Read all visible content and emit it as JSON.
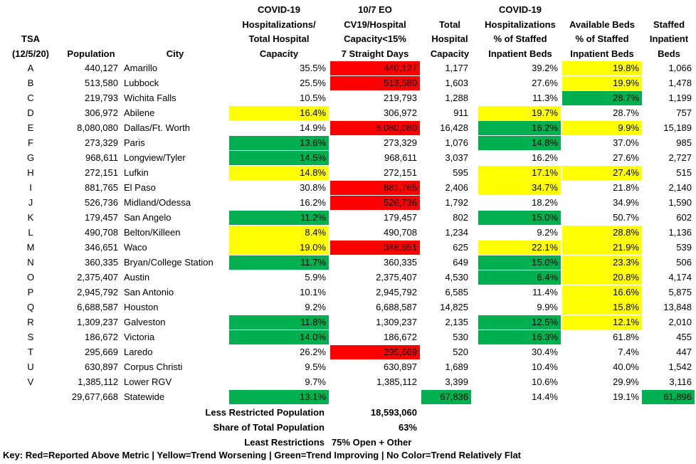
{
  "headers": {
    "tsa": [
      "TSA",
      "(12/5/20)"
    ],
    "population": [
      "Population"
    ],
    "city": [
      "City"
    ],
    "hosp_total": [
      "COVID-19",
      "Hospitalizations/",
      "Total Hospital",
      "Capacity"
    ],
    "eo": [
      "10/7 EO",
      "CV19/Hospital",
      "Capacity<15%",
      "7 Straight Days"
    ],
    "total_capacity": [
      "Total",
      "Hospital",
      "Capacity"
    ],
    "hosp_staffed": [
      "COVID-19",
      "Hospitalizations",
      "% of Staffed",
      "Inpatient Beds"
    ],
    "avail": [
      "Available Beds",
      "% of Staffed",
      "Inpatient Beds"
    ],
    "staffed": [
      "Staffed",
      "Inpatient",
      "Beds"
    ]
  },
  "colors": {
    "red": "#ff0000",
    "yellow": "#ffff00",
    "green": "#00b050",
    "none": ""
  },
  "rows": [
    {
      "tsa": "A",
      "population": "440,127",
      "city": "Amarillo",
      "hosp_total": "35.5%",
      "eo": "440,127",
      "total_capacity": "1,177",
      "hosp_staffed": "39.2%",
      "avail": "19.8%",
      "staffed": "1,066",
      "fills": {
        "hosp_total": "none",
        "eo": "red",
        "total_capacity": "none",
        "hosp_staffed": "none",
        "avail": "yellow",
        "staffed": "none"
      }
    },
    {
      "tsa": "B",
      "population": "513,580",
      "city": "Lubbock",
      "hosp_total": "25.5%",
      "eo": "513,580",
      "total_capacity": "1,603",
      "hosp_staffed": "27.6%",
      "avail": "19.9%",
      "staffed": "1,478",
      "fills": {
        "hosp_total": "none",
        "eo": "red",
        "total_capacity": "none",
        "hosp_staffed": "none",
        "avail": "yellow",
        "staffed": "none"
      }
    },
    {
      "tsa": "C",
      "population": "219,793",
      "city": "Wichita Falls",
      "hosp_total": "10.5%",
      "eo": "219,793",
      "total_capacity": "1,288",
      "hosp_staffed": "11.3%",
      "avail": "28.7%",
      "staffed": "1,199",
      "fills": {
        "hosp_total": "none",
        "eo": "none",
        "total_capacity": "none",
        "hosp_staffed": "none",
        "avail": "green",
        "staffed": "none"
      }
    },
    {
      "tsa": "D",
      "population": "306,972",
      "city": "Abilene",
      "hosp_total": "16.4%",
      "eo": "306,972",
      "total_capacity": "911",
      "hosp_staffed": "19.7%",
      "avail": "28.7%",
      "staffed": "757",
      "fills": {
        "hosp_total": "yellow",
        "eo": "none",
        "total_capacity": "none",
        "hosp_staffed": "yellow",
        "avail": "none",
        "staffed": "none"
      }
    },
    {
      "tsa": "E",
      "population": "8,080,080",
      "city": "Dallas/Ft. Worth",
      "hosp_total": "14.9%",
      "eo": "8,080,080",
      "total_capacity": "16,428",
      "hosp_staffed": "16.2%",
      "avail": "9.9%",
      "staffed": "15,189",
      "fills": {
        "hosp_total": "none",
        "eo": "red",
        "total_capacity": "none",
        "hosp_staffed": "green",
        "avail": "yellow",
        "staffed": "none"
      }
    },
    {
      "tsa": "F",
      "population": "273,329",
      "city": "Paris",
      "hosp_total": "13.6%",
      "eo": "273,329",
      "total_capacity": "1,076",
      "hosp_staffed": "14.8%",
      "avail": "37.0%",
      "staffed": "985",
      "fills": {
        "hosp_total": "green",
        "eo": "none",
        "total_capacity": "none",
        "hosp_staffed": "green",
        "avail": "none",
        "staffed": "none"
      }
    },
    {
      "tsa": "G",
      "population": "968,611",
      "city": "Longview/Tyler",
      "hosp_total": "14.5%",
      "eo": "968,611",
      "total_capacity": "3,037",
      "hosp_staffed": "16.2%",
      "avail": "27.6%",
      "staffed": "2,727",
      "fills": {
        "hosp_total": "green",
        "eo": "none",
        "total_capacity": "none",
        "hosp_staffed": "none",
        "avail": "none",
        "staffed": "none"
      }
    },
    {
      "tsa": "H",
      "population": "272,151",
      "city": "Lufkin",
      "hosp_total": "14.8%",
      "eo": "272,151",
      "total_capacity": "595",
      "hosp_staffed": "17.1%",
      "avail": "27.4%",
      "staffed": "515",
      "fills": {
        "hosp_total": "yellow",
        "eo": "none",
        "total_capacity": "none",
        "hosp_staffed": "yellow",
        "avail": "yellow",
        "staffed": "none"
      }
    },
    {
      "tsa": "I",
      "population": "881,765",
      "city": "El Paso",
      "hosp_total": "30.8%",
      "eo": "881,765",
      "total_capacity": "2,406",
      "hosp_staffed": "34.7%",
      "avail": "21.8%",
      "staffed": "2,140",
      "fills": {
        "hosp_total": "none",
        "eo": "red",
        "total_capacity": "none",
        "hosp_staffed": "yellow",
        "avail": "none",
        "staffed": "none"
      }
    },
    {
      "tsa": "J",
      "population": "526,736",
      "city": "Midland/Odessa",
      "hosp_total": "16.2%",
      "eo": "526,736",
      "total_capacity": "1,792",
      "hosp_staffed": "18.2%",
      "avail": "34.9%",
      "staffed": "1,590",
      "fills": {
        "hosp_total": "none",
        "eo": "red",
        "total_capacity": "none",
        "hosp_staffed": "none",
        "avail": "none",
        "staffed": "none"
      }
    },
    {
      "tsa": "K",
      "population": "179,457",
      "city": "San Angelo",
      "hosp_total": "11.2%",
      "eo": "179,457",
      "total_capacity": "802",
      "hosp_staffed": "15.0%",
      "avail": "50.7%",
      "staffed": "602",
      "fills": {
        "hosp_total": "green",
        "eo": "none",
        "total_capacity": "none",
        "hosp_staffed": "green",
        "avail": "none",
        "staffed": "none"
      }
    },
    {
      "tsa": "L",
      "population": "490,708",
      "city": "Belton/Killeen",
      "hosp_total": "8.4%",
      "eo": "490,708",
      "total_capacity": "1,234",
      "hosp_staffed": "9.2%",
      "avail": "28.8%",
      "staffed": "1,136",
      "fills": {
        "hosp_total": "yellow",
        "eo": "none",
        "total_capacity": "none",
        "hosp_staffed": "none",
        "avail": "yellow",
        "staffed": "none"
      }
    },
    {
      "tsa": "M",
      "population": "346,651",
      "city": "Waco",
      "hosp_total": "19.0%",
      "eo": "346,651",
      "total_capacity": "625",
      "hosp_staffed": "22.1%",
      "avail": "21.9%",
      "staffed": "539",
      "fills": {
        "hosp_total": "yellow",
        "eo": "red",
        "total_capacity": "none",
        "hosp_staffed": "yellow",
        "avail": "yellow",
        "staffed": "none"
      }
    },
    {
      "tsa": "N",
      "population": "360,335",
      "city": "Bryan/College Station",
      "hosp_total": "11.7%",
      "eo": "360,335",
      "total_capacity": "649",
      "hosp_staffed": "15.0%",
      "avail": "23.3%",
      "staffed": "506",
      "fills": {
        "hosp_total": "green",
        "eo": "none",
        "total_capacity": "none",
        "hosp_staffed": "green",
        "avail": "yellow",
        "staffed": "none"
      }
    },
    {
      "tsa": "O",
      "population": "2,375,407",
      "city": "Austin",
      "hosp_total": "5.9%",
      "eo": "2,375,407",
      "total_capacity": "4,530",
      "hosp_staffed": "6.4%",
      "avail": "20.8%",
      "staffed": "4,174",
      "fills": {
        "hosp_total": "none",
        "eo": "none",
        "total_capacity": "none",
        "hosp_staffed": "green",
        "avail": "yellow",
        "staffed": "none"
      }
    },
    {
      "tsa": "P",
      "population": "2,945,792",
      "city": "San Antonio",
      "hosp_total": "10.1%",
      "eo": "2,945,792",
      "total_capacity": "6,585",
      "hosp_staffed": "11.4%",
      "avail": "16.6%",
      "staffed": "5,875",
      "fills": {
        "hosp_total": "none",
        "eo": "none",
        "total_capacity": "none",
        "hosp_staffed": "none",
        "avail": "yellow",
        "staffed": "none"
      }
    },
    {
      "tsa": "Q",
      "population": "6,688,587",
      "city": "Houston",
      "hosp_total": "9.2%",
      "eo": "6,688,587",
      "total_capacity": "14,825",
      "hosp_staffed": "9.9%",
      "avail": "15.8%",
      "staffed": "13,848",
      "fills": {
        "hosp_total": "none",
        "eo": "none",
        "total_capacity": "none",
        "hosp_staffed": "none",
        "avail": "yellow",
        "staffed": "none"
      }
    },
    {
      "tsa": "R",
      "population": "1,309,237",
      "city": "Galveston",
      "hosp_total": "11.8%",
      "eo": "1,309,237",
      "total_capacity": "2,135",
      "hosp_staffed": "12.5%",
      "avail": "12.1%",
      "staffed": "2,010",
      "fills": {
        "hosp_total": "green",
        "eo": "none",
        "total_capacity": "none",
        "hosp_staffed": "green",
        "avail": "yellow",
        "staffed": "none"
      }
    },
    {
      "tsa": "S",
      "population": "186,672",
      "city": "Victoria",
      "hosp_total": "14.0%",
      "eo": "186,672",
      "total_capacity": "530",
      "hosp_staffed": "16.3%",
      "avail": "61.8%",
      "staffed": "455",
      "fills": {
        "hosp_total": "green",
        "eo": "none",
        "total_capacity": "none",
        "hosp_staffed": "green",
        "avail": "none",
        "staffed": "none"
      }
    },
    {
      "tsa": "T",
      "population": "295,669",
      "city": "Laredo",
      "hosp_total": "26.2%",
      "eo": "295,669",
      "total_capacity": "520",
      "hosp_staffed": "30.4%",
      "avail": "7.4%",
      "staffed": "447",
      "fills": {
        "hosp_total": "none",
        "eo": "red",
        "total_capacity": "none",
        "hosp_staffed": "none",
        "avail": "none",
        "staffed": "none"
      }
    },
    {
      "tsa": "U",
      "population": "630,897",
      "city": "Corpus Christi",
      "hosp_total": "9.5%",
      "eo": "630,897",
      "total_capacity": "1,689",
      "hosp_staffed": "10.4%",
      "avail": "40.0%",
      "staffed": "1,542",
      "fills": {
        "hosp_total": "none",
        "eo": "none",
        "total_capacity": "none",
        "hosp_staffed": "none",
        "avail": "none",
        "staffed": "none"
      }
    },
    {
      "tsa": "V",
      "population": "1,385,112",
      "city": "Lower RGV",
      "hosp_total": "9.7%",
      "eo": "1,385,112",
      "total_capacity": "3,399",
      "hosp_staffed": "10.6%",
      "avail": "29.9%",
      "staffed": "3,116",
      "fills": {
        "hosp_total": "none",
        "eo": "none",
        "total_capacity": "none",
        "hosp_staffed": "none",
        "avail": "none",
        "staffed": "none"
      }
    },
    {
      "tsa": "",
      "population": "29,677,668",
      "city": "Statewide",
      "hosp_total": "13.1%",
      "eo": "",
      "total_capacity": "67,836",
      "hosp_staffed": "14.4%",
      "avail": "19.1%",
      "staffed": "61,896",
      "fills": {
        "hosp_total": "green",
        "eo": "none",
        "total_capacity": "green",
        "hosp_staffed": "none",
        "avail": "none",
        "staffed": "green"
      }
    }
  ],
  "summary": [
    {
      "label": "Less Restricted Population",
      "value": "18,593,060"
    },
    {
      "label": "Share of Total Population",
      "value": "63%"
    },
    {
      "label": "Least Restrictions",
      "value": "75% Open + Other"
    }
  ],
  "key": "Key:  Red=Reported Above Metric | Yellow=Trend Worsening | Green=Trend Improving | No Color=Trend Relatively Flat"
}
